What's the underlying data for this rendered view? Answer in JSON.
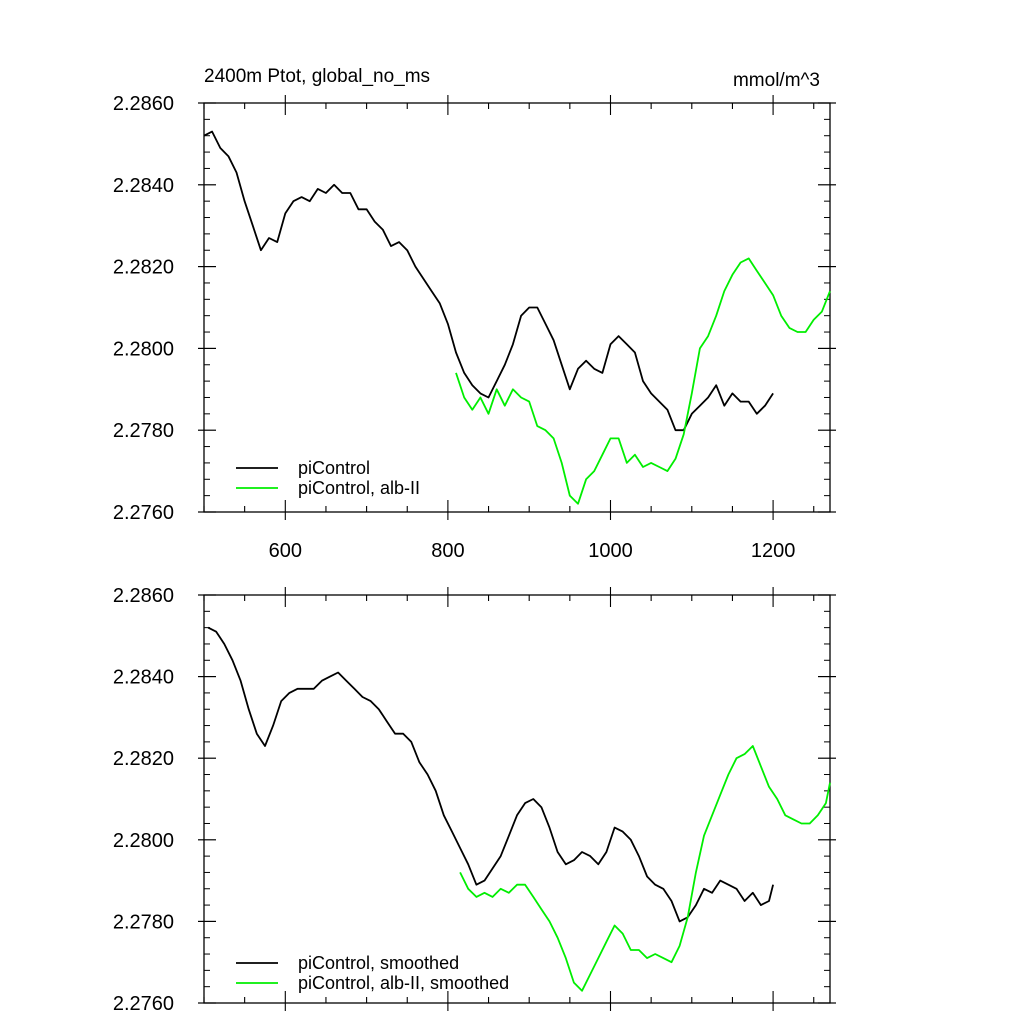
{
  "figure": {
    "title_left": "2400m Ptot, global_no_ms",
    "title_right": "mmol/m^3"
  },
  "chart_data": [
    {
      "type": "line",
      "title": "2400m Ptot, global_no_ms",
      "units": "mmol/m^3",
      "xlim": [
        500,
        1270
      ],
      "ylim": [
        2.276,
        2.286
      ],
      "xticks": [
        600,
        800,
        1000,
        1200
      ],
      "xtick_labels": [
        "600",
        "800",
        "1000",
        "1200"
      ],
      "yticks": [
        2.276,
        2.278,
        2.28,
        2.282,
        2.284,
        2.286
      ],
      "ytick_labels": [
        "2.2760",
        "2.2780",
        "2.2800",
        "2.2820",
        "2.2840",
        "2.2860"
      ],
      "legend_position": "bottom-left",
      "series": [
        {
          "name": "piControl",
          "color": "#000000",
          "x": [
            500,
            510,
            520,
            530,
            540,
            550,
            560,
            570,
            580,
            590,
            600,
            610,
            620,
            630,
            640,
            650,
            660,
            670,
            680,
            690,
            700,
            710,
            720,
            730,
            740,
            750,
            760,
            770,
            780,
            790,
            800,
            810,
            820,
            830,
            840,
            850,
            860,
            870,
            880,
            890,
            900,
            910,
            920,
            930,
            940,
            950,
            960,
            970,
            980,
            990,
            1000,
            1010,
            1020,
            1030,
            1040,
            1050,
            1060,
            1070,
            1080,
            1090,
            1100,
            1110,
            1120,
            1130,
            1140,
            1150,
            1160,
            1170,
            1180,
            1190,
            1200
          ],
          "y": [
            2.2852,
            2.2853,
            2.2849,
            2.2847,
            2.2843,
            2.2836,
            2.283,
            2.2824,
            2.2827,
            2.2826,
            2.2833,
            2.2836,
            2.2837,
            2.2836,
            2.2839,
            2.2838,
            2.284,
            2.2838,
            2.2838,
            2.2834,
            2.2834,
            2.2831,
            2.2829,
            2.2825,
            2.2826,
            2.2824,
            2.282,
            2.2817,
            2.2814,
            2.2811,
            2.2806,
            2.2799,
            2.2794,
            2.2791,
            2.2789,
            2.2788,
            2.2792,
            2.2796,
            2.2801,
            2.2808,
            2.281,
            2.281,
            2.2806,
            2.2802,
            2.2796,
            2.279,
            2.2795,
            2.2797,
            2.2795,
            2.2794,
            2.2801,
            2.2803,
            2.2801,
            2.2799,
            2.2792,
            2.2789,
            2.2787,
            2.2785,
            2.278,
            2.278,
            2.2784,
            2.2786,
            2.2788,
            2.2791,
            2.2786,
            2.2789,
            2.2787,
            2.2787,
            2.2784,
            2.2786,
            2.2789
          ]
        },
        {
          "name": "piControl, alb-II",
          "color": "#00ee00",
          "x": [
            810,
            820,
            830,
            840,
            850,
            860,
            870,
            880,
            890,
            900,
            910,
            920,
            930,
            940,
            950,
            960,
            970,
            980,
            990,
            1000,
            1010,
            1020,
            1030,
            1040,
            1050,
            1060,
            1070,
            1080,
            1090,
            1100,
            1110,
            1120,
            1130,
            1140,
            1150,
            1160,
            1170,
            1180,
            1190,
            1200,
            1210,
            1220,
            1230,
            1240,
            1250,
            1260,
            1270
          ],
          "y": [
            2.2794,
            2.2788,
            2.2785,
            2.2788,
            2.2784,
            2.279,
            2.2786,
            2.279,
            2.2788,
            2.2787,
            2.2781,
            2.278,
            2.2778,
            2.2772,
            2.2764,
            2.2762,
            2.2768,
            2.277,
            2.2774,
            2.2778,
            2.2778,
            2.2772,
            2.2774,
            2.2771,
            2.2772,
            2.2771,
            2.277,
            2.2773,
            2.2779,
            2.2789,
            2.28,
            2.2803,
            2.2808,
            2.2814,
            2.2818,
            2.2821,
            2.2822,
            2.2819,
            2.2816,
            2.2813,
            2.2808,
            2.2805,
            2.2804,
            2.2804,
            2.2807,
            2.2809,
            2.2814
          ]
        }
      ]
    },
    {
      "type": "line",
      "xlim": [
        500,
        1270
      ],
      "ylim": [
        2.276,
        2.286
      ],
      "xticks": [
        600,
        800,
        1000,
        1200
      ],
      "yticks": [
        2.276,
        2.278,
        2.28,
        2.282,
        2.284,
        2.286
      ],
      "ytick_labels": [
        "2.2760",
        "2.2780",
        "2.2800",
        "2.2820",
        "2.2840",
        "2.2860"
      ],
      "legend_position": "bottom-left",
      "series": [
        {
          "name": "piControl, smoothed",
          "color": "#000000",
          "x": [
            505,
            515,
            525,
            535,
            545,
            555,
            565,
            575,
            585,
            595,
            605,
            615,
            625,
            635,
            645,
            655,
            665,
            675,
            685,
            695,
            705,
            715,
            725,
            735,
            745,
            755,
            765,
            775,
            785,
            795,
            805,
            815,
            825,
            835,
            845,
            855,
            865,
            875,
            885,
            895,
            905,
            915,
            925,
            935,
            945,
            955,
            965,
            975,
            985,
            995,
            1005,
            1015,
            1025,
            1035,
            1045,
            1055,
            1065,
            1075,
            1085,
            1095,
            1105,
            1115,
            1125,
            1135,
            1145,
            1155,
            1165,
            1175,
            1185,
            1195,
            1200
          ],
          "y": [
            2.2852,
            2.2851,
            2.2848,
            2.2844,
            2.2839,
            2.2832,
            2.2826,
            2.2823,
            2.2828,
            2.2834,
            2.2836,
            2.2837,
            2.2837,
            2.2837,
            2.2839,
            2.284,
            2.2841,
            2.2839,
            2.2837,
            2.2835,
            2.2834,
            2.2832,
            2.2829,
            2.2826,
            2.2826,
            2.2824,
            2.2819,
            2.2816,
            2.2812,
            2.2806,
            2.2802,
            2.2798,
            2.2794,
            2.2789,
            2.279,
            2.2793,
            2.2796,
            2.2801,
            2.2806,
            2.2809,
            2.281,
            2.2808,
            2.2803,
            2.2797,
            2.2794,
            2.2795,
            2.2797,
            2.2796,
            2.2794,
            2.2797,
            2.2803,
            2.2802,
            2.28,
            2.2796,
            2.2791,
            2.2789,
            2.2788,
            2.2785,
            2.278,
            2.2781,
            2.2784,
            2.2788,
            2.2787,
            2.279,
            2.2789,
            2.2788,
            2.2785,
            2.2787,
            2.2784,
            2.2785,
            2.2789
          ]
        },
        {
          "name": "piControl, alb-II, smoothed",
          "color": "#00ee00",
          "x": [
            815,
            825,
            835,
            845,
            855,
            865,
            875,
            885,
            895,
            905,
            915,
            925,
            935,
            945,
            955,
            965,
            975,
            985,
            995,
            1005,
            1015,
            1025,
            1035,
            1045,
            1055,
            1065,
            1075,
            1085,
            1095,
            1105,
            1115,
            1125,
            1135,
            1145,
            1155,
            1165,
            1175,
            1185,
            1195,
            1205,
            1215,
            1225,
            1235,
            1245,
            1255,
            1265,
            1270
          ],
          "y": [
            2.2792,
            2.2788,
            2.2786,
            2.2787,
            2.2786,
            2.2788,
            2.2787,
            2.2789,
            2.2789,
            2.2786,
            2.2783,
            2.278,
            2.2776,
            2.2771,
            2.2765,
            2.2763,
            2.2767,
            2.2771,
            2.2775,
            2.2779,
            2.2777,
            2.2773,
            2.2773,
            2.2771,
            2.2772,
            2.2771,
            2.277,
            2.2774,
            2.2781,
            2.2792,
            2.2801,
            2.2806,
            2.2811,
            2.2816,
            2.282,
            2.2821,
            2.2823,
            2.2818,
            2.2813,
            2.281,
            2.2806,
            2.2805,
            2.2804,
            2.2804,
            2.2806,
            2.2809,
            2.2814
          ]
        }
      ]
    }
  ]
}
